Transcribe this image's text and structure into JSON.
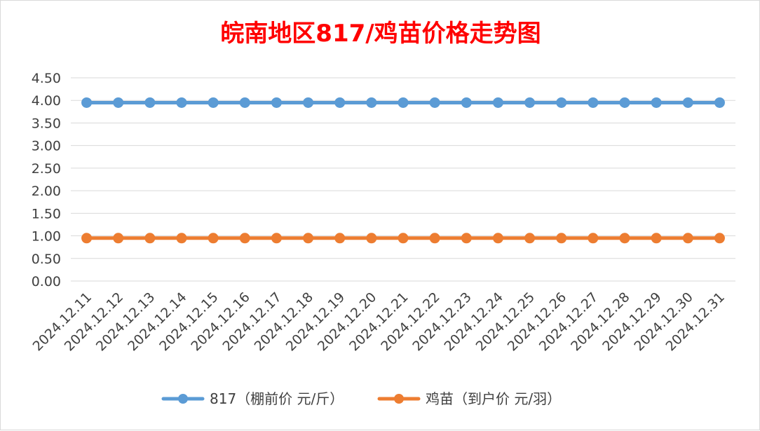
{
  "chart_data": {
    "type": "line",
    "title": "皖南地区817/鸡苗价格走势图",
    "xlabel": "",
    "ylabel": "",
    "categories": [
      "2024.12.11",
      "2024.12.12",
      "2024.12.13",
      "2024.12.14",
      "2024.12.15",
      "2024.12.16",
      "2024.12.17",
      "2024.12.18",
      "2024.12.19",
      "2024.12.20",
      "2024.12.21",
      "2024.12.22",
      "2024.12.23",
      "2024.12.24",
      "2024.12.25",
      "2024.12.26",
      "2024.12.27",
      "2024.12.28",
      "2024.12.29",
      "2024.12.30",
      "2024.12.31"
    ],
    "y_ticks": [
      "0.00",
      "0.50",
      "1.00",
      "1.50",
      "2.00",
      "2.50",
      "3.00",
      "3.50",
      "4.00",
      "4.50"
    ],
    "ylim": [
      0,
      4.5
    ],
    "grid": true,
    "legend_position": "bottom",
    "series": [
      {
        "name": "817（棚前价 元/斤）",
        "color": "#5b9bd5",
        "values": [
          3.95,
          3.95,
          3.95,
          3.95,
          3.95,
          3.95,
          3.95,
          3.95,
          3.95,
          3.95,
          3.95,
          3.95,
          3.95,
          3.95,
          3.95,
          3.95,
          3.95,
          3.95,
          3.95,
          3.95,
          3.95
        ]
      },
      {
        "name": "鸡苗（到户价 元/羽）",
        "color": "#ed7d31",
        "values": [
          0.95,
          0.95,
          0.95,
          0.95,
          0.95,
          0.95,
          0.95,
          0.95,
          0.95,
          0.95,
          0.95,
          0.95,
          0.95,
          0.95,
          0.95,
          0.95,
          0.95,
          0.95,
          0.95,
          0.95,
          0.95
        ]
      }
    ]
  }
}
